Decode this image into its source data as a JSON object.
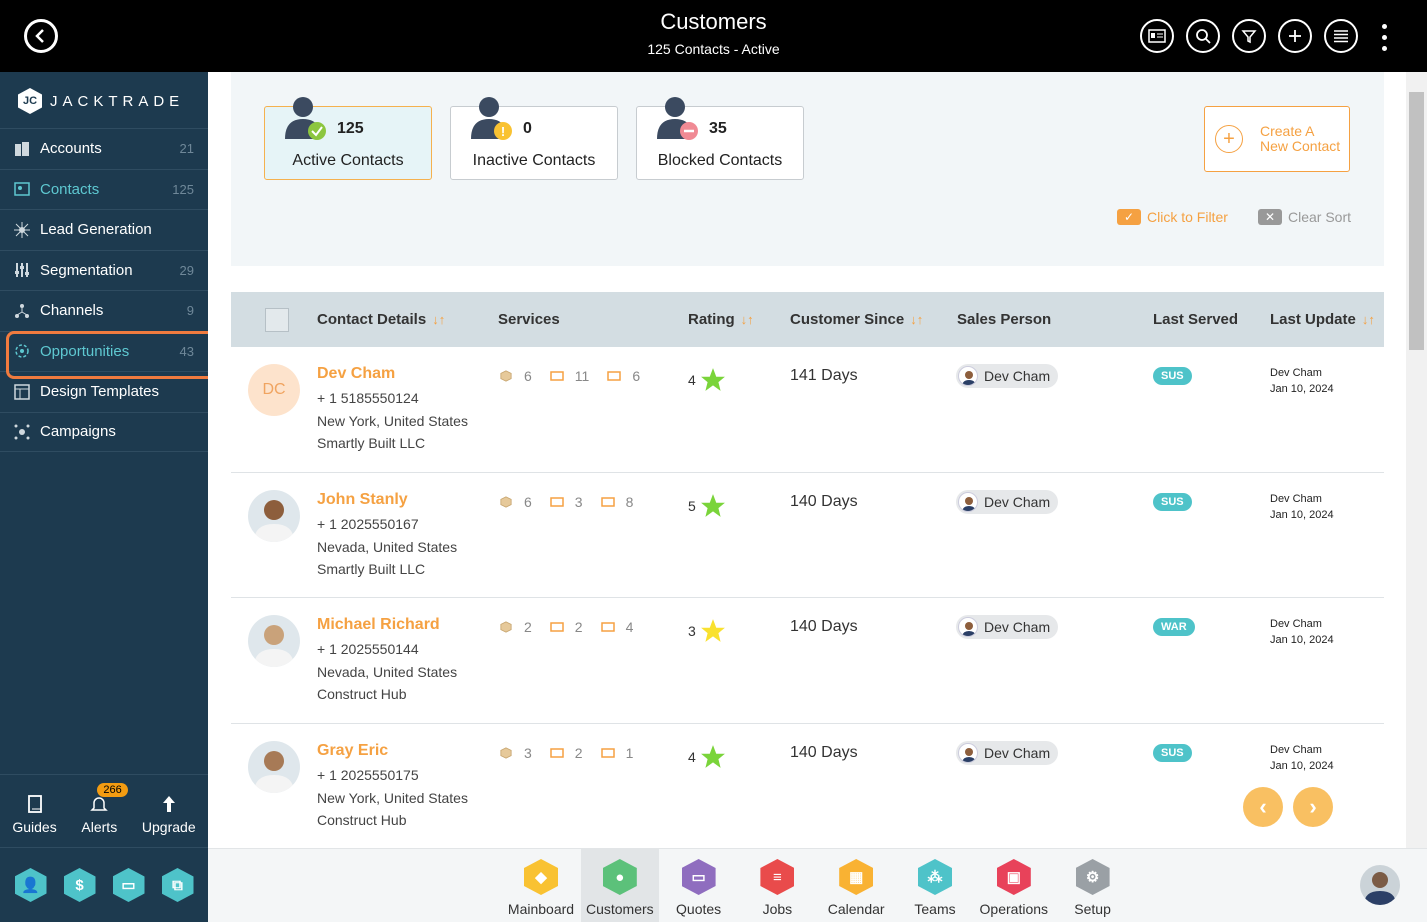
{
  "header": {
    "title": "Customers",
    "subtitle": "125 Contacts - Active",
    "icons": [
      "back-icon",
      "contact-card-icon",
      "search-icon",
      "filter-icon",
      "add-icon",
      "list-icon",
      "more-icon"
    ]
  },
  "sidebar": {
    "logo_text": "JACKTRADE",
    "items": [
      {
        "label": "Accounts",
        "count": "21",
        "icon": "building-icon"
      },
      {
        "label": "Contacts",
        "count": "125",
        "icon": "contacts-icon"
      },
      {
        "label": "Lead Generation",
        "count": "",
        "icon": "lead-icon"
      },
      {
        "label": "Segmentation",
        "count": "29",
        "icon": "segmentation-icon"
      },
      {
        "label": "Channels",
        "count": "9",
        "icon": "channels-icon"
      },
      {
        "label": "Opportunities",
        "count": "43",
        "icon": "opportunities-icon"
      },
      {
        "label": "Design Templates",
        "count": "",
        "icon": "templates-icon"
      },
      {
        "label": "Campaigns",
        "count": "",
        "icon": "campaigns-icon"
      }
    ],
    "bottom": [
      {
        "label": "Guides",
        "icon": "book-icon"
      },
      {
        "label": "Alerts",
        "icon": "bell-icon",
        "badge": "266"
      },
      {
        "label": "Upgrade",
        "icon": "upgrade-arrow-icon"
      }
    ]
  },
  "status_cards": [
    {
      "count": "125",
      "label": "Active Contacts"
    },
    {
      "count": "0",
      "label": "Inactive Contacts"
    },
    {
      "count": "35",
      "label": "Blocked Contacts"
    }
  ],
  "create_button": {
    "line1": "Create A",
    "line2": "New Contact"
  },
  "filter_link": "Click to Filter",
  "clear_sort": "Clear Sort",
  "table": {
    "columns": [
      "Contact Details",
      "Services",
      "Rating",
      "Customer Since",
      "Sales Person",
      "Last Served",
      "Last Update"
    ],
    "rows": [
      {
        "name": "Dev Cham",
        "initials": "DC",
        "phone": "+ 1 5185550124",
        "location": "New York, United States",
        "company": "Smartly Built LLC",
        "svc1": "6",
        "svc2": "11",
        "svc3": "6",
        "rating": "4",
        "since": "141 Days",
        "sales": "Dev Cham",
        "served": "SUS",
        "upd_by": "Dev Cham",
        "upd_date": "Jan 10, 2024"
      },
      {
        "name": "John Stanly",
        "initials": "",
        "phone": "+ 1 2025550167",
        "location": "Nevada, United States",
        "company": "Smartly Built LLC",
        "svc1": "6",
        "svc2": "3",
        "svc3": "8",
        "rating": "5",
        "since": "140 Days",
        "sales": "Dev Cham",
        "served": "SUS",
        "upd_by": "Dev Cham",
        "upd_date": "Jan 10, 2024"
      },
      {
        "name": "Michael Richard",
        "initials": "",
        "phone": "+ 1 2025550144",
        "location": "Nevada, United States",
        "company": "Construct Hub",
        "svc1": "2",
        "svc2": "2",
        "svc3": "4",
        "rating": "3",
        "since": "140 Days",
        "sales": "Dev Cham",
        "served": "WAR",
        "upd_by": "Dev Cham",
        "upd_date": "Jan 10, 2024"
      },
      {
        "name": "Gray Eric",
        "initials": "",
        "phone": "+ 1 2025550175",
        "location": "New York, United States",
        "company": "Construct Hub",
        "svc1": "3",
        "svc2": "2",
        "svc3": "1",
        "rating": "4",
        "since": "140 Days",
        "sales": "Dev Cham",
        "served": "SUS",
        "upd_by": "Dev Cham",
        "upd_date": "Jan 10, 2024"
      }
    ]
  },
  "bottom_apps": [
    {
      "label": "Mainboard",
      "color": "#f9c232"
    },
    {
      "label": "Customers",
      "color": "#5cc17a"
    },
    {
      "label": "Quotes",
      "color": "#8f6dbf"
    },
    {
      "label": "Jobs",
      "color": "#e94b4b"
    },
    {
      "label": "Calendar",
      "color": "#f9b233"
    },
    {
      "label": "Teams",
      "color": "#4ec3c9"
    },
    {
      "label": "Operations",
      "color": "#e8425a"
    },
    {
      "label": "Setup",
      "color": "#9aa0a5"
    }
  ],
  "colors": {
    "accent": "#f5a142",
    "sidebar": "#1d3a4f",
    "teal": "#4ec3c9",
    "highlight": "#f07b3f"
  }
}
